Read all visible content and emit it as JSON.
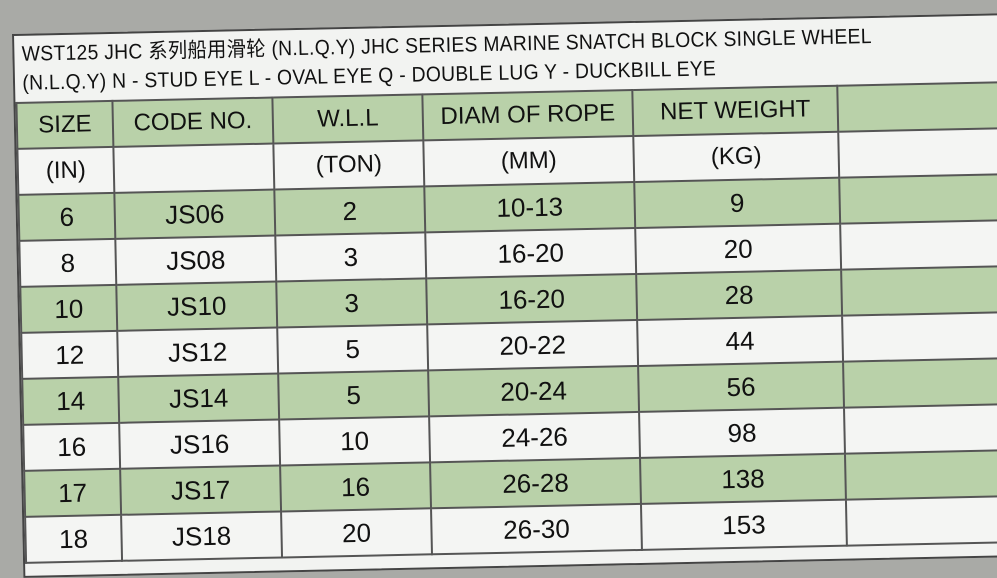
{
  "title_line1": "WST125 JHC 系列船用滑轮 (N.L.Q.Y) JHC SERIES MARINE SNATCH BLOCK SINGLE WHEEL",
  "title_line2": "(N.L.Q.Y)   N - STUD EYE  L - OVAL EYE  Q - DOUBLE LUG  Y - DUCKBILL EYE",
  "colors": {
    "green": "#b9d1a9",
    "white": "#f4f5f3"
  },
  "headers": [
    "SIZE",
    "CODE NO.",
    "W.L.L",
    "DIAM OF ROPE",
    "NET WEIGHT",
    ""
  ],
  "units": [
    "(IN)",
    "",
    "(TON)",
    "(MM)",
    "(KG)",
    ""
  ],
  "rows": [
    [
      "6",
      "JS06",
      "2",
      "10-13",
      "9",
      ""
    ],
    [
      "8",
      "JS08",
      "3",
      "16-20",
      "20",
      ""
    ],
    [
      "10",
      "JS10",
      "3",
      "16-20",
      "28",
      ""
    ],
    [
      "12",
      "JS12",
      "5",
      "20-22",
      "44",
      ""
    ],
    [
      "14",
      "JS14",
      "5",
      "20-24",
      "56",
      ""
    ],
    [
      "16",
      "JS16",
      "10",
      "24-26",
      "98",
      ""
    ],
    [
      "17",
      "JS17",
      "16",
      "26-28",
      "138",
      ""
    ],
    [
      "18",
      "JS18",
      "20",
      "26-30",
      "153",
      ""
    ]
  ]
}
